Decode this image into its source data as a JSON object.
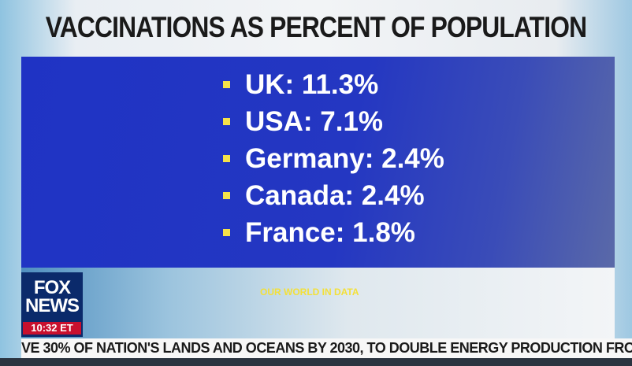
{
  "title": "VACCINATIONS AS PERCENT OF POPULATION",
  "items": [
    "UK: 11.3%",
    "USA: 7.1%",
    "Germany: 2.4%",
    "Canada: 2.4%",
    "France: 1.8%"
  ],
  "source": "OUR WORLD IN DATA",
  "logo": "FOX NEWS",
  "time": "10:32 ET",
  "ticker": "VE 30% OF NATION'S LANDS AND OCEANS BY 2030, TO DOUBLE ENERGY PRODUCTION FROM OFFSHORE"
}
